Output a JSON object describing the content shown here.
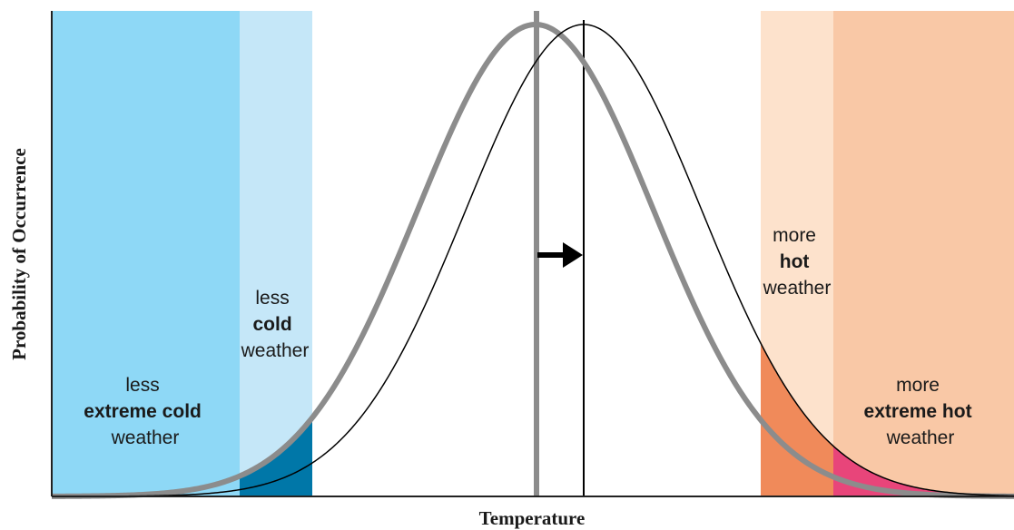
{
  "axes": {
    "xlabel": "Temperature",
    "ylabel": "Probability of Occurrence"
  },
  "regions": {
    "extreme_cold": {
      "color": "#8ed8f6",
      "lines": [
        "less",
        "extreme cold",
        "weather"
      ]
    },
    "cold": {
      "color": "#c5e7f8",
      "lines": [
        "less",
        "cold",
        "weather"
      ]
    },
    "hot": {
      "color": "#fde2cc",
      "lines": [
        "more",
        "hot",
        "weather"
      ]
    },
    "extreme_hot": {
      "color": "#f9c8a6",
      "lines": [
        "more",
        "extreme hot",
        "weather"
      ]
    }
  },
  "curves": {
    "previous_climate_color": "#8c8c8c",
    "new_climate_color": "#000000"
  },
  "tail_fills": {
    "cold_tail_color": "#0077a8",
    "hot_tail_color": "#f08a5a",
    "extreme_hot_tail_color": "#e8457a"
  },
  "shift_arrow_color": "#000000"
}
